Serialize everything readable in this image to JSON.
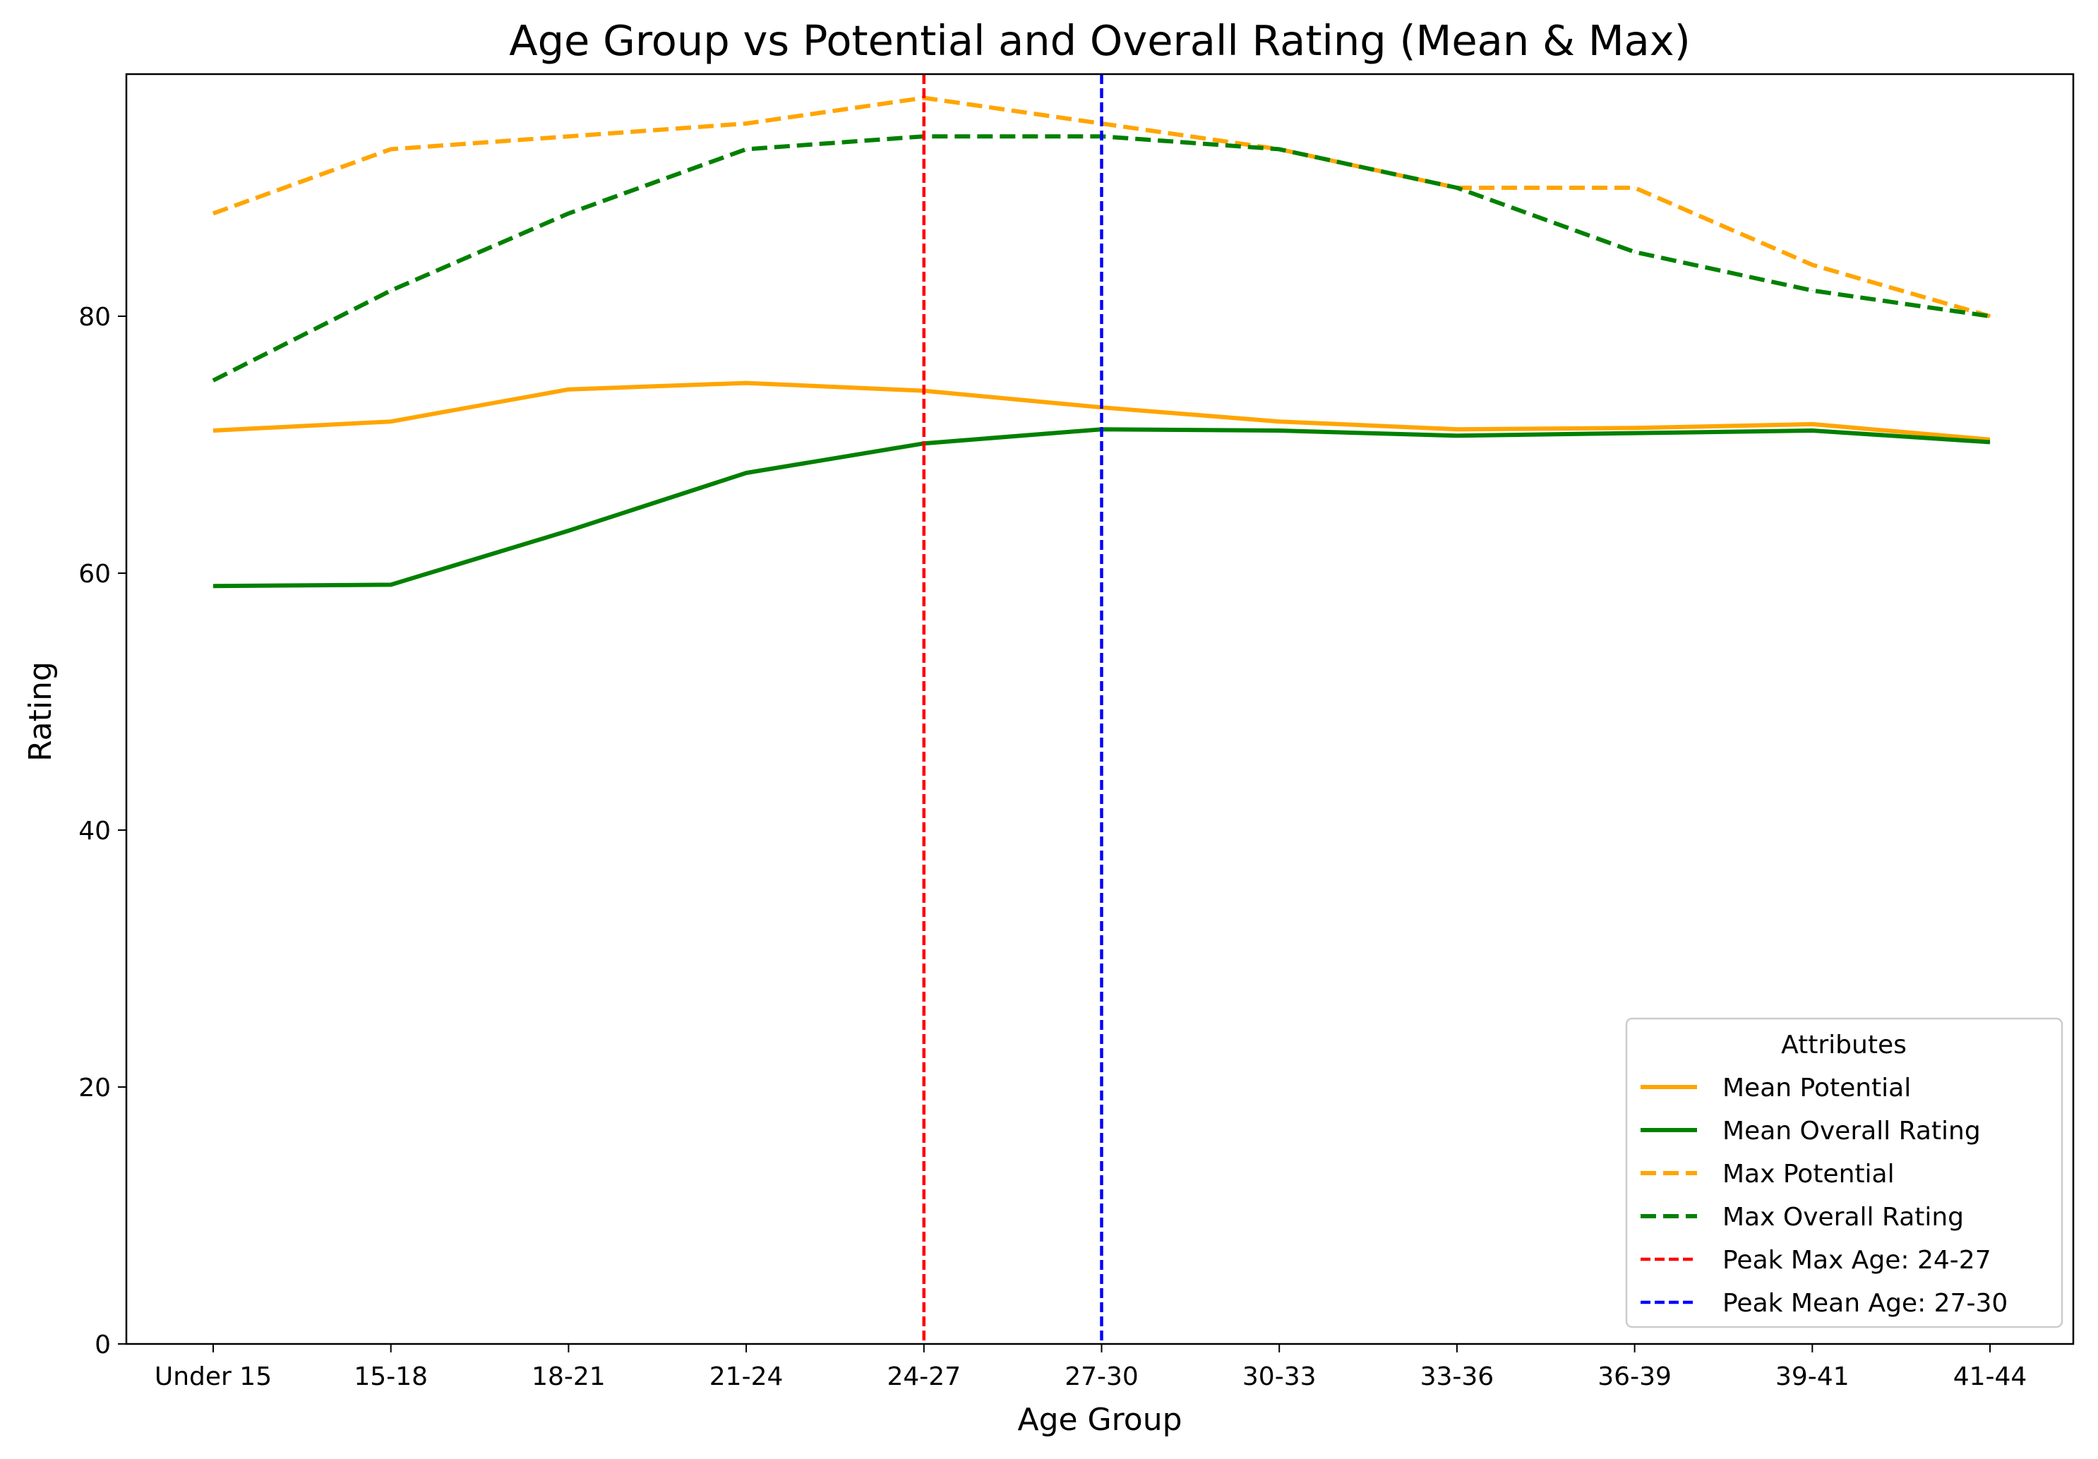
{
  "chart_data": {
    "type": "line",
    "title": "Age Group vs Potential and Overall Rating (Mean & Max)",
    "xlabel": "Age Group",
    "ylabel": "Rating",
    "categories": [
      "Under 15",
      "15-18",
      "18-21",
      "21-24",
      "24-27",
      "27-30",
      "30-33",
      "33-36",
      "36-39",
      "39-41",
      "41-44"
    ],
    "ylim": [
      0,
      99
    ],
    "yticks": [
      0,
      20,
      40,
      60,
      80
    ],
    "grid": false,
    "series": [
      {
        "name": "Mean Potential",
        "color": "#FFA500",
        "style": "solid",
        "values": [
          71.1,
          71.8,
          74.3,
          74.8,
          74.2,
          72.9,
          71.8,
          71.2,
          71.3,
          71.6,
          70.4
        ]
      },
      {
        "name": "Mean Overall Rating",
        "color": "#008000",
        "style": "solid",
        "values": [
          59.0,
          59.1,
          63.3,
          67.8,
          70.1,
          71.2,
          71.1,
          70.7,
          70.9,
          71.1,
          70.2
        ]
      },
      {
        "name": "Max Potential",
        "color": "#FFA500",
        "style": "dashed",
        "values": [
          88,
          93,
          94,
          95,
          97,
          95,
          93,
          90,
          90,
          84,
          80
        ]
      },
      {
        "name": "Max Overall Rating",
        "color": "#008000",
        "style": "dashed",
        "values": [
          75,
          82,
          88,
          93,
          94,
          94,
          93,
          90,
          85,
          82,
          80
        ]
      }
    ],
    "vlines": [
      {
        "name": "Peak Max Age: 24-27",
        "category": "24-27",
        "color": "#FF0000"
      },
      {
        "name": "Peak Mean Age: 27-30",
        "category": "27-30",
        "color": "#0000FF"
      }
    ],
    "legend": {
      "title": "Attributes",
      "position": "lower-right"
    }
  }
}
